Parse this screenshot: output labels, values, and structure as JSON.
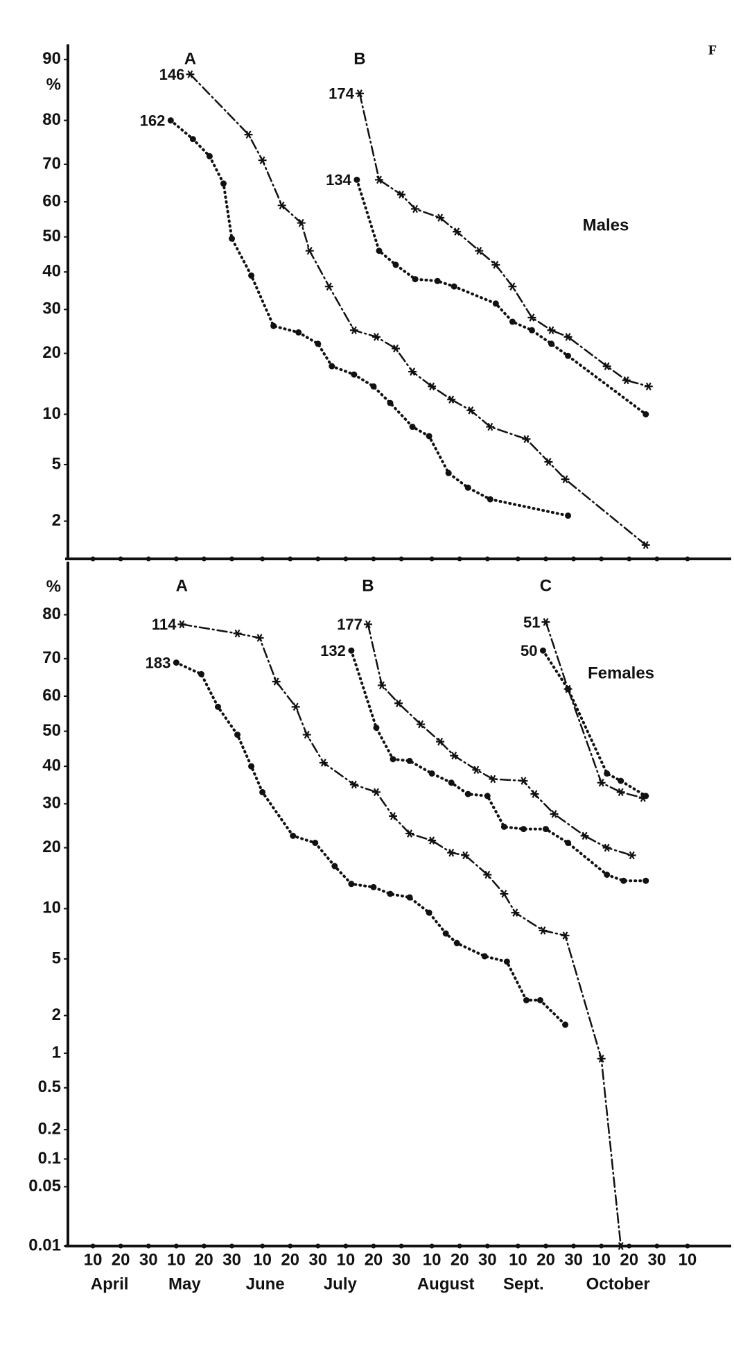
{
  "figure_label": "F",
  "chart_data": [
    {
      "type": "line",
      "scale": "probit",
      "panel_label": "Males",
      "y_label": "%",
      "xlim": [
        "04-01",
        "11-22"
      ],
      "ylim": [
        1,
        91
      ],
      "yticks": [
        90,
        80,
        70,
        60,
        50,
        40,
        30,
        20,
        10,
        5,
        2
      ],
      "groups": [
        {
          "label": "A",
          "series": [
            {
              "name": "146",
              "color": "#111",
              "line_style": "dashdot",
              "marker": "star",
              "x": [
                "05-15",
                "06-05",
                "06-10",
                "06-17",
                "06-24",
                "06-27",
                "07-04",
                "07-13",
                "07-21",
                "07-28",
                "08-03",
                "08-10",
                "08-17",
                "08-24",
                "08-31",
                "09-13",
                "09-21",
                "09-27",
                "10-26"
              ],
              "values": [
                88,
                77,
                71,
                59,
                54,
                46,
                36,
                25,
                23.5,
                21,
                16.5,
                14,
                12,
                10.5,
                8.5,
                7.2,
                5.2,
                4,
                1.3
              ]
            },
            {
              "name": "162",
              "color": "#111",
              "line_style": "dotted",
              "marker": "circle",
              "x": [
                "05-08",
                "05-16",
                "05-22",
                "05-27",
                "05-30",
                "06-06",
                "06-14",
                "06-23",
                "06-30",
                "07-05",
                "07-13",
                "07-20",
                "07-26",
                "08-03",
                "08-09",
                "08-16",
                "08-23",
                "08-31",
                "09-28"
              ],
              "values": [
                80,
                76,
                72,
                65,
                49.5,
                39,
                26,
                24.5,
                22,
                17.5,
                16,
                14,
                11.5,
                8.5,
                7.5,
                4.4,
                3.5,
                2.9,
                2.2
              ]
            }
          ]
        },
        {
          "label": "B",
          "series": [
            {
              "name": "174",
              "color": "#111",
              "line_style": "dashdot",
              "marker": "star",
              "x": [
                "07-15",
                "07-22",
                "07-30",
                "08-04",
                "08-13",
                "08-19",
                "08-27",
                "09-02",
                "09-08",
                "09-15",
                "09-22",
                "09-28",
                "10-12",
                "10-19",
                "10-27"
              ],
              "values": [
                85,
                66,
                62,
                58,
                55.5,
                51.5,
                46,
                42,
                36,
                28,
                25,
                23.5,
                17.5,
                15,
                14
              ]
            },
            {
              "name": "134",
              "color": "#111",
              "line_style": "dotted",
              "marker": "circle",
              "x": [
                "07-14",
                "07-22",
                "07-28",
                "08-04",
                "08-12",
                "08-18",
                "09-02",
                "09-08",
                "09-15",
                "09-22",
                "09-28",
                "10-26"
              ],
              "values": [
                66,
                46,
                42,
                38,
                37.5,
                36,
                31.5,
                27,
                25,
                22,
                19.5,
                10
              ]
            }
          ]
        }
      ]
    },
    {
      "type": "line",
      "scale": "probit",
      "panel_label": "Females",
      "y_label": "%",
      "xlim": [
        "04-01",
        "11-22"
      ],
      "ylim": [
        0.01,
        88
      ],
      "yticks": [
        80,
        70,
        60,
        50,
        40,
        30,
        20,
        10,
        5,
        2,
        1,
        0.5,
        0.2,
        0.1,
        0.05,
        0.01
      ],
      "xticks": [
        {
          "value": "04-10",
          "label": "10"
        },
        {
          "value": "04-20",
          "label": "20"
        },
        {
          "value": "04-30",
          "label": "30"
        },
        {
          "value": "05-10",
          "label": "10"
        },
        {
          "value": "05-20",
          "label": "20"
        },
        {
          "value": "05-30",
          "label": "30"
        },
        {
          "value": "06-10",
          "label": "10"
        },
        {
          "value": "06-20",
          "label": "20"
        },
        {
          "value": "06-30",
          "label": "30"
        },
        {
          "value": "07-10",
          "label": "10"
        },
        {
          "value": "07-20",
          "label": "20"
        },
        {
          "value": "07-30",
          "label": "30"
        },
        {
          "value": "08-10",
          "label": "10"
        },
        {
          "value": "08-20",
          "label": "20"
        },
        {
          "value": "08-30",
          "label": "30"
        },
        {
          "value": "09-10",
          "label": "10"
        },
        {
          "value": "09-20",
          "label": "20"
        },
        {
          "value": "09-30",
          "label": "30"
        },
        {
          "value": "10-10",
          "label": "10"
        },
        {
          "value": "10-20",
          "label": "20"
        },
        {
          "value": "10-30",
          "label": "30"
        },
        {
          "value": "11-10",
          "label": "10"
        }
      ],
      "months": [
        {
          "value": "04-16",
          "label": "April"
        },
        {
          "value": "05-13",
          "label": "May"
        },
        {
          "value": "06-11",
          "label": "June"
        },
        {
          "value": "07-08",
          "label": "July"
        },
        {
          "value": "08-15",
          "label": "August"
        },
        {
          "value": "09-12",
          "label": "Sept."
        },
        {
          "value": "10-16",
          "label": "October"
        }
      ],
      "groups": [
        {
          "label": "A",
          "series": [
            {
              "name": "114",
              "color": "#111",
              "line_style": "dashdot",
              "marker": "star",
              "x": [
                "05-12",
                "06-01",
                "06-09",
                "06-15",
                "06-22",
                "06-26",
                "07-02",
                "07-13",
                "07-21",
                "07-27",
                "08-02",
                "08-10",
                "08-17",
                "08-22",
                "08-30",
                "09-05",
                "09-09",
                "09-19",
                "09-27",
                "10-10",
                "10-17"
              ],
              "values": [
                78,
                76,
                75,
                64,
                57,
                49,
                41,
                35,
                33,
                27,
                23,
                21.5,
                19,
                18.5,
                15,
                12,
                9.5,
                7.5,
                7,
                0.9,
                0.01
              ]
            },
            {
              "name": "183",
              "color": "#111",
              "line_style": "dotted",
              "marker": "circle",
              "x": [
                "05-10",
                "05-19",
                "05-25",
                "06-01",
                "06-06",
                "06-10",
                "06-21",
                "06-29",
                "07-06",
                "07-12",
                "07-20",
                "07-26",
                "08-02",
                "08-09",
                "08-15",
                "08-19",
                "08-29",
                "09-06",
                "09-13",
                "09-18",
                "09-27"
              ],
              "values": [
                69,
                66,
                57,
                49,
                40,
                33,
                22.5,
                21,
                16.5,
                13.5,
                13,
                12,
                11.5,
                9.5,
                7.2,
                6.3,
                5.2,
                4.8,
                2.6,
                2.6,
                1.7
              ]
            }
          ]
        },
        {
          "label": "B",
          "series": [
            {
              "name": "177",
              "color": "#111",
              "line_style": "dashdot",
              "marker": "star",
              "x": [
                "07-18",
                "07-23",
                "07-29",
                "08-06",
                "08-13",
                "08-18",
                "08-26",
                "09-01",
                "09-12",
                "09-16",
                "09-23",
                "10-04",
                "10-12",
                "10-21"
              ],
              "values": [
                78,
                63,
                58,
                52,
                47,
                43,
                39,
                36.5,
                36,
                32.5,
                27.5,
                22.5,
                20,
                18.5
              ]
            },
            {
              "name": "132",
              "color": "#111",
              "line_style": "dotted",
              "marker": "circle",
              "x": [
                "07-12",
                "07-21",
                "07-27",
                "08-02",
                "08-10",
                "08-17",
                "08-23",
                "08-30",
                "09-05",
                "09-12",
                "09-20",
                "09-28",
                "10-12",
                "10-18",
                "10-26"
              ],
              "values": [
                72,
                51,
                42,
                41.5,
                38,
                35.5,
                32.5,
                32,
                24.5,
                24,
                24,
                21,
                15,
                14,
                14
              ]
            }
          ]
        },
        {
          "label": "C",
          "series": [
            {
              "name": "51",
              "color": "#111",
              "line_style": "dashdot",
              "marker": "star",
              "x": [
                "09-20",
                "09-28",
                "10-10",
                "10-17",
                "10-25"
              ],
              "values": [
                78.5,
                62,
                35.5,
                33,
                31.5
              ]
            },
            {
              "name": "50",
              "color": "#111",
              "line_style": "dotted",
              "marker": "circle",
              "x": [
                "09-19",
                "09-28",
                "10-12",
                "10-17",
                "10-26"
              ],
              "values": [
                72,
                62,
                38,
                36,
                32
              ]
            }
          ]
        }
      ]
    }
  ]
}
